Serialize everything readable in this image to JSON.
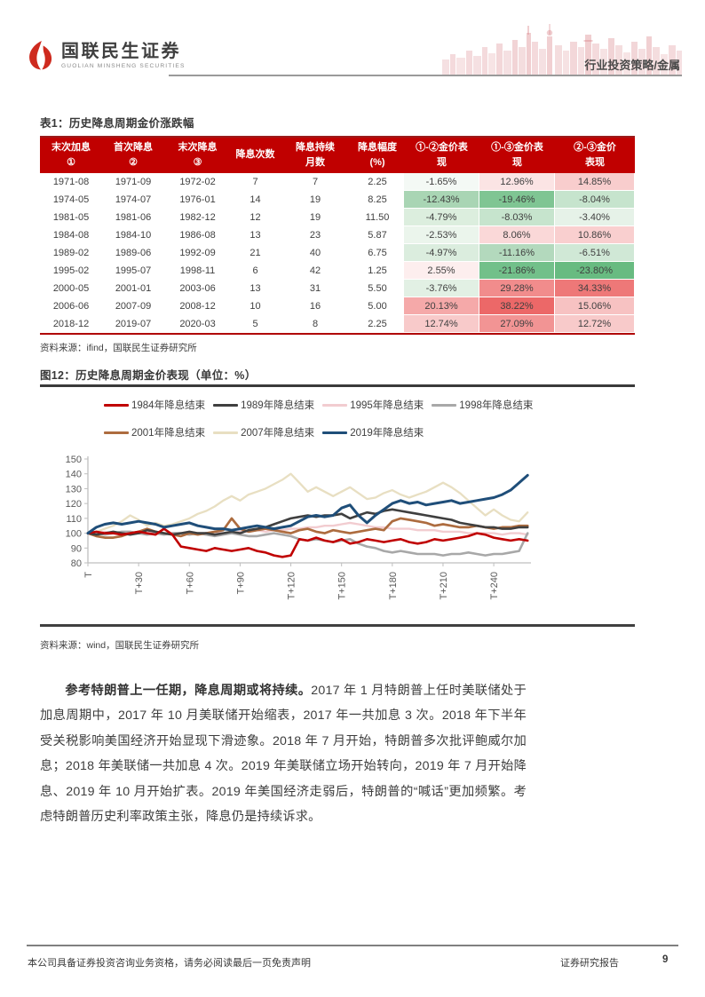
{
  "header": {
    "brand_cn": "国联民生证券",
    "brand_en": "GUOLIAN MINSHENG SECURITIES",
    "section_label": "行业投资策略/金属"
  },
  "table": {
    "title": "表1：历史降息周期金价涨跌幅",
    "columns": [
      "末次加息\n①",
      "首次降息\n②",
      "末次降息\n③",
      "降息次数",
      "降息持续\n月数",
      "降息幅度\n(%)",
      "①-②金价表\n现",
      "①-③金价表\n现",
      "②-③金价\n表现"
    ],
    "rows": [
      {
        "cells": [
          "1971-08",
          "1971-09",
          "1972-02",
          "7",
          "7",
          "2.25",
          "-1.65%",
          "12.96%",
          "14.85%"
        ],
        "bg": [
          "",
          "",
          "",
          "",
          "",
          "",
          "#f4f9f5",
          "#fbe4e4",
          "#f8cdcd"
        ]
      },
      {
        "cells": [
          "1974-05",
          "1974-07",
          "1976-01",
          "14",
          "19",
          "8.25",
          "-12.43%",
          "-19.46%",
          "-8.04%"
        ],
        "bg": [
          "",
          "",
          "",
          "",
          "",
          "",
          "#a9d5b4",
          "#7fc593",
          "#c6e4cd"
        ]
      },
      {
        "cells": [
          "1981-05",
          "1981-06",
          "1982-12",
          "12",
          "19",
          "11.50",
          "-4.79%",
          "-8.03%",
          "-3.40%"
        ],
        "bg": [
          "",
          "",
          "",
          "",
          "",
          "",
          "#dceede",
          "#c6e4cd",
          "#e6f2e8"
        ]
      },
      {
        "cells": [
          "1984-08",
          "1984-10",
          "1986-08",
          "13",
          "23",
          "5.87",
          "-2.53%",
          "8.06%",
          "10.86%"
        ],
        "bg": [
          "",
          "",
          "",
          "",
          "",
          "",
          "#ebf5ec",
          "#fad8d8",
          "#f9cfcf"
        ]
      },
      {
        "cells": [
          "1989-02",
          "1989-06",
          "1992-09",
          "21",
          "40",
          "6.75",
          "-4.97%",
          "-11.16%",
          "-6.51%"
        ],
        "bg": [
          "",
          "",
          "",
          "",
          "",
          "",
          "#dbedde",
          "#b3d9bd",
          "#d0e8d6"
        ]
      },
      {
        "cells": [
          "1995-02",
          "1995-07",
          "1998-11",
          "6",
          "42",
          "1.25",
          "2.55%",
          "-21.86%",
          "-23.80%"
        ],
        "bg": [
          "",
          "",
          "",
          "",
          "",
          "",
          "#fdeeee",
          "#72c08a",
          "#68bb81"
        ]
      },
      {
        "cells": [
          "2000-05",
          "2001-01",
          "2003-06",
          "13",
          "31",
          "5.50",
          "-3.76%",
          "29.28%",
          "34.33%"
        ],
        "bg": [
          "",
          "",
          "",
          "",
          "",
          "",
          "#e2f0e4",
          "#f18c8c",
          "#ee7878"
        ]
      },
      {
        "cells": [
          "2006-06",
          "2007-09",
          "2008-12",
          "10",
          "16",
          "5.00",
          "20.13%",
          "38.22%",
          "15.06%"
        ],
        "bg": [
          "",
          "",
          "",
          "",
          "",
          "",
          "#f5a9a9",
          "#ec6868",
          "#f7c2c2"
        ]
      },
      {
        "cells": [
          "2018-12",
          "2019-07",
          "2020-03",
          "5",
          "8",
          "2.25",
          "12.74%",
          "27.09%",
          "12.72%"
        ],
        "bg": [
          "",
          "",
          "",
          "",
          "",
          "",
          "#f8caca",
          "#f29494",
          "#f8caca"
        ]
      }
    ],
    "source": "资料来源：ifind，国联民生证券研究所"
  },
  "figure": {
    "title": "图12：历史降息周期金价表现（单位：%）",
    "source": "资料来源：wind，国联民生证券研究所"
  },
  "chart_data": {
    "type": "line",
    "title": "历史降息周期金价表现",
    "unit": "%",
    "xlabel": "",
    "ylabel": "",
    "ylim": [
      80,
      150
    ],
    "yticks": [
      80,
      90,
      100,
      110,
      120,
      130,
      140,
      150
    ],
    "x_ticks": [
      "T",
      "T+30",
      "T+60",
      "T+90",
      "T+120",
      "T+150",
      "T+180",
      "T+210",
      "T+240"
    ],
    "x_step": 5,
    "x_max": 262,
    "grid": "off",
    "legend_position": "top",
    "draw_order": [
      2,
      3,
      5,
      4,
      1,
      0,
      6
    ],
    "series": [
      {
        "name": "1984年降息结束",
        "color": "#c00000",
        "width": 2.6,
        "values": [
          100,
          101,
          100,
          100,
          99,
          100,
          101,
          100,
          99,
          103,
          99,
          91,
          90,
          89,
          88,
          90,
          89,
          88,
          89,
          90,
          88,
          87,
          85,
          84,
          85,
          96,
          95,
          97,
          95,
          94,
          96,
          93,
          94,
          96,
          95,
          94,
          95,
          96,
          94,
          93,
          94,
          96,
          95,
          96,
          97,
          98,
          100,
          99,
          97,
          96,
          95,
          96,
          95
        ]
      },
      {
        "name": "1989年降息结束",
        "color": "#3f3f3f",
        "width": 2.6,
        "values": [
          100,
          99,
          100,
          101,
          100,
          99,
          100,
          102,
          101,
          100,
          99,
          100,
          101,
          100,
          100,
          99,
          100,
          101,
          100,
          102,
          103,
          104,
          106,
          108,
          110,
          111,
          112,
          111,
          112,
          112,
          113,
          110,
          112,
          114,
          113,
          115,
          116,
          115,
          114,
          113,
          112,
          111,
          110,
          109,
          107,
          106,
          105,
          104,
          104,
          103,
          103,
          104,
          104
        ]
      },
      {
        "name": "1995年降息结束",
        "color": "#f2ccd0",
        "width": 2.4,
        "values": [
          100,
          100,
          101,
          100,
          100,
          99,
          100,
          100,
          101,
          100,
          100,
          100,
          101,
          100,
          100,
          101,
          100,
          100,
          101,
          101,
          102,
          101,
          102,
          102,
          103,
          103,
          104,
          104,
          105,
          105,
          106,
          107,
          106,
          105,
          104,
          104,
          103,
          103,
          103,
          102,
          102,
          102,
          101,
          101,
          101,
          100,
          100,
          100,
          100,
          99,
          100,
          100,
          99
        ]
      },
      {
        "name": "1998年降息结束",
        "color": "#a8a8a8",
        "width": 2.6,
        "values": [
          100,
          100,
          99,
          100,
          101,
          101,
          100,
          99,
          100,
          99,
          100,
          100,
          99,
          100,
          99,
          98,
          99,
          100,
          99,
          98,
          98,
          99,
          100,
          99,
          98,
          96,
          95,
          96,
          95,
          94,
          95,
          96,
          93,
          91,
          90,
          88,
          87,
          88,
          87,
          86,
          86,
          86,
          85,
          86,
          86,
          87,
          86,
          85,
          86,
          86,
          87,
          88,
          100
        ]
      },
      {
        "name": "2001年降息结束",
        "color": "#ad6c3f",
        "width": 2.7,
        "values": [
          100,
          98,
          97,
          97,
          98,
          100,
          101,
          103,
          101,
          100,
          99,
          98,
          100,
          99,
          100,
          101,
          102,
          110,
          103,
          101,
          102,
          103,
          102,
          101,
          100,
          102,
          103,
          101,
          100,
          102,
          101,
          100,
          101,
          102,
          103,
          102,
          108,
          110,
          109,
          108,
          107,
          105,
          106,
          105,
          104,
          104,
          105,
          104,
          103,
          104,
          104,
          105,
          105
        ]
      },
      {
        "name": "2007年降息结束",
        "color": "#e8dfc2",
        "width": 2.3,
        "values": [
          100,
          101,
          103,
          105,
          108,
          112,
          109,
          105,
          107,
          105,
          106,
          108,
          110,
          113,
          115,
          118,
          122,
          125,
          122,
          126,
          128,
          130,
          133,
          136,
          140,
          134,
          128,
          131,
          128,
          125,
          128,
          131,
          127,
          123,
          124,
          127,
          129,
          126,
          124,
          126,
          128,
          131,
          134,
          131,
          127,
          122,
          117,
          112,
          116,
          112,
          109,
          108,
          114
        ]
      },
      {
        "name": "2019年降息结束",
        "color": "#1f4e79",
        "width": 3,
        "values": [
          100,
          104,
          106,
          107,
          106,
          107,
          108,
          107,
          106,
          104,
          105,
          106,
          107,
          105,
          104,
          103,
          103,
          102,
          103,
          104,
          105,
          104,
          103,
          104,
          105,
          108,
          111,
          112,
          111,
          112,
          117,
          119,
          112,
          107,
          112,
          116,
          120,
          122,
          120,
          121,
          119,
          120,
          121,
          122,
          120,
          121,
          122,
          123,
          124,
          126,
          129,
          134,
          139
        ]
      }
    ]
  },
  "body": {
    "lead": "参考特朗普上一任期，降息周期或将持续。",
    "text": "2017 年 1 月特朗普上任时美联储处于加息周期中，2017 年 10 月美联储开始缩表，2017 年一共加息 3 次。2018 年下半年受关税影响美国经济开始显现下滑迹象。2018 年 7 月开始，特朗普多次批评鲍威尔加息；2018 年美联储一共加息 4 次。2019 年美联储立场开始转向，2019 年 7 月开始降息、2019 年 10 月开始扩表。2019 年美国经济走弱后，特朗普的“喊话”更加频繁。考虑特朗普历史利率政策主张，降息仍是持续诉求。"
  },
  "footer": {
    "left": "本公司具备证券投资咨询业务资格，请务必阅读最后一页免责声明",
    "right": "证券研究报告",
    "page": "9"
  }
}
